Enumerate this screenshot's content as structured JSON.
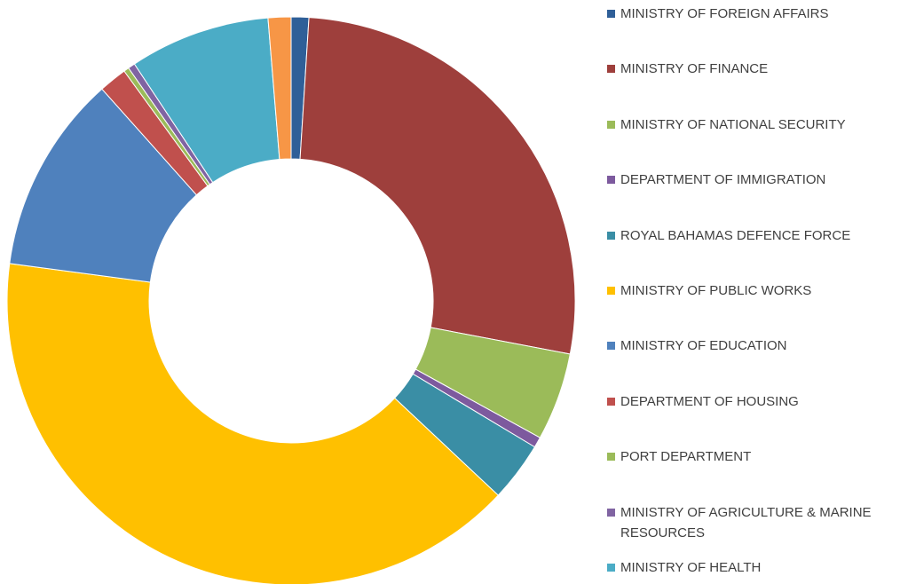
{
  "chart_data": {
    "type": "donut",
    "categories": [
      "MINISTRY OF FOREIGN AFFAIRS",
      "MINISTRY OF FINANCE",
      "MINISTRY OF NATIONAL SECURITY",
      "DEPARTMENT OF IMMIGRATION",
      "ROYAL BAHAMAS DEFENCE FORCE",
      "MINISTRY OF PUBLIC WORKS",
      "MINISTRY OF EDUCATION",
      "DEPARTMENT OF HOUSING",
      "PORT DEPARTMENT",
      "MINISTRY OF AGRICULTURE & MARINE RESOURCES",
      "MINISTRY OF HEALTH",
      null
    ],
    "values": [
      1,
      27,
      5,
      0.6,
      3.4,
      40.1,
      11.3,
      1.6,
      0.3,
      0.4,
      8,
      1.3
    ],
    "colors": [
      "#2f5f98",
      "#9e3f3c",
      "#9bbb59",
      "#7d5a9e",
      "#3a8ea5",
      "#ffc000",
      "#4f81bd",
      "#c0504d",
      "#9bbb59",
      "#8064a2",
      "#4bacc6",
      "#f79646"
    ]
  }
}
